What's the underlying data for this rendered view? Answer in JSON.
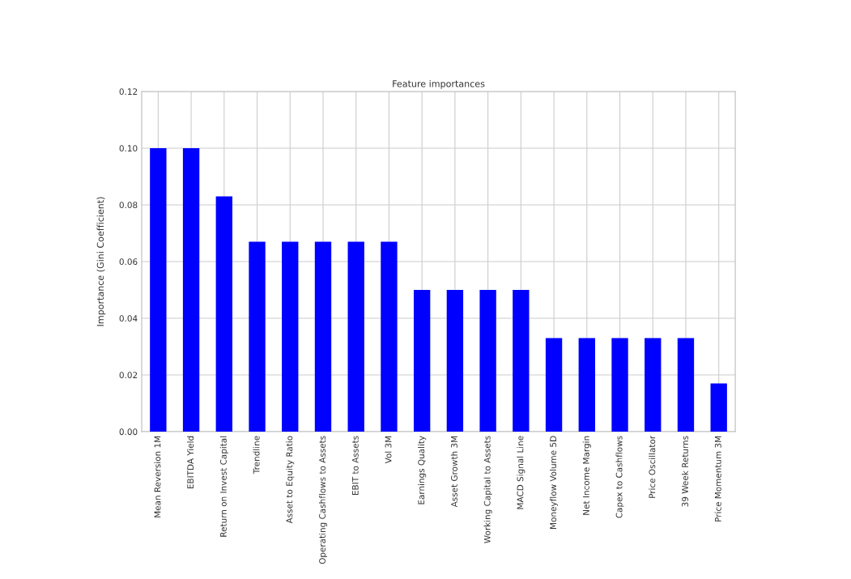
{
  "chart_data": {
    "type": "bar",
    "title": "Feature importances",
    "ylabel": "Importance (Gini Coefficient)",
    "categories": [
      "Mean Reversion 1M",
      "EBITDA Yield",
      "Return on Invest Capital",
      "Trendline",
      "Asset to Equity Ratio",
      "Operating Cashflows to Assets",
      "EBIT to Assets",
      "Vol 3M",
      "Earnings Quality",
      "Asset Growth 3M",
      "Working Capital to Assets",
      "MACD Signal Line",
      "Moneyflow Volume 5D",
      "Net Income Margin",
      "Capex to Cashflows",
      "Price Oscillator",
      "39 Week Returns",
      "Price Momentum 3M"
    ],
    "values": [
      0.1,
      0.1,
      0.083,
      0.067,
      0.067,
      0.067,
      0.067,
      0.067,
      0.05,
      0.05,
      0.05,
      0.05,
      0.033,
      0.033,
      0.033,
      0.033,
      0.033,
      0.017
    ],
    "color": "#0000ff",
    "ylim": [
      0,
      0.12
    ],
    "yticks": [
      {
        "value": 0,
        "label": "0.00"
      },
      {
        "value": 0.02,
        "label": "0.02"
      },
      {
        "value": 0.04,
        "label": "0.04"
      },
      {
        "value": 0.06,
        "label": "0.06"
      },
      {
        "value": 0.08,
        "label": "0.08"
      },
      {
        "value": 0.1,
        "label": "0.10"
      },
      {
        "value": 0.12,
        "label": "0.12"
      }
    ],
    "grid": true
  }
}
